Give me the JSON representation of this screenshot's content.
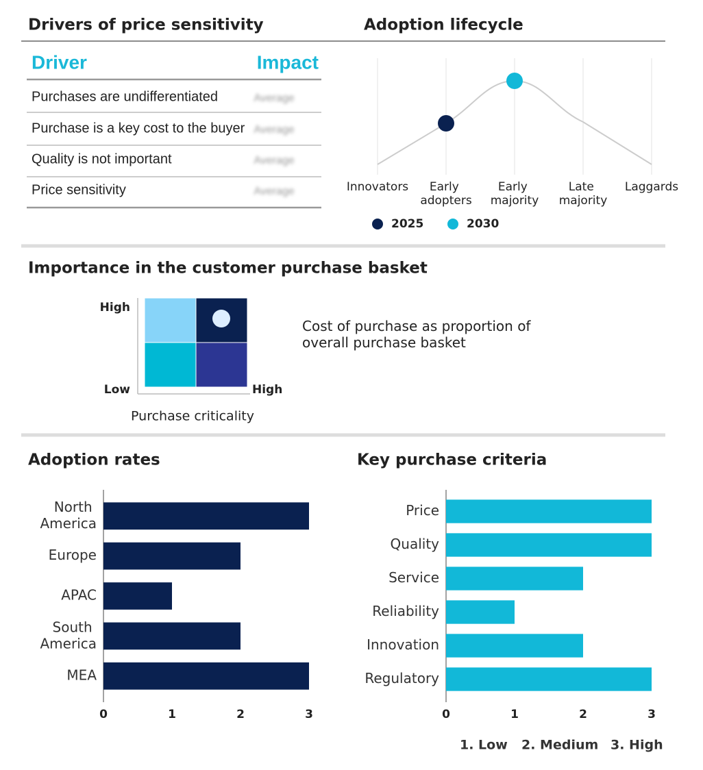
{
  "drivers": {
    "title": "Drivers of price sensitivity",
    "columns": [
      "Driver",
      "Impact"
    ],
    "rows": [
      [
        "Purchases are undifferentiated",
        "Average"
      ],
      [
        "Purchase is a key cost to the buyer",
        "Average"
      ],
      [
        "Quality is not important",
        "Average"
      ],
      [
        "Price sensitivity",
        "Average"
      ]
    ]
  },
  "chart_data": [
    {
      "type": "lifecycle",
      "title": "Adoption lifecycle",
      "categories": [
        "Innovators",
        "Early adopters",
        "Early majority",
        "Late majority",
        "Laggards"
      ],
      "curve_color": "#cccccc",
      "series": [
        {
          "name": "2025",
          "color": "#0a2150",
          "stage": 1
        },
        {
          "name": "2030",
          "color": "#12b8d8",
          "stage": 2
        }
      ]
    },
    {
      "type": "matrix",
      "title": "Importance in the customer purchase basket",
      "y_high_label": "High",
      "origin_label": "Low",
      "x_high_label": "High",
      "x_label": "Purchase criticality",
      "description": "Cost of purchase as proportion of overall purchase basket",
      "cells": [
        [
          "#87d4f9",
          "#0a2150"
        ],
        [
          "#00b8d4",
          "#2c3693"
        ]
      ],
      "marker": {
        "row": 0,
        "col": 1,
        "color": "#ddeeff"
      }
    },
    {
      "type": "bar",
      "orientation": "horizontal",
      "title": "Adoption rates",
      "categories": [
        "North America",
        "Europe",
        "APAC",
        "South America",
        "MEA"
      ],
      "values": [
        3,
        2,
        1,
        2,
        3
      ],
      "color": "#0a2150",
      "xlim": [
        0,
        3
      ],
      "xticks": [
        0,
        1,
        2,
        3
      ]
    },
    {
      "type": "bar",
      "orientation": "horizontal",
      "title": "Key purchase criteria",
      "categories": [
        "Price",
        "Quality",
        "Service",
        "Reliability",
        "Innovation",
        "Regulatory"
      ],
      "values": [
        3,
        3,
        2,
        1,
        2,
        3
      ],
      "color": "#12b8d8",
      "xlim": [
        0,
        3
      ],
      "xticks": [
        0,
        1,
        2,
        3
      ]
    }
  ],
  "scale_legend": [
    "1. Low",
    "2. Medium",
    "3. High"
  ]
}
